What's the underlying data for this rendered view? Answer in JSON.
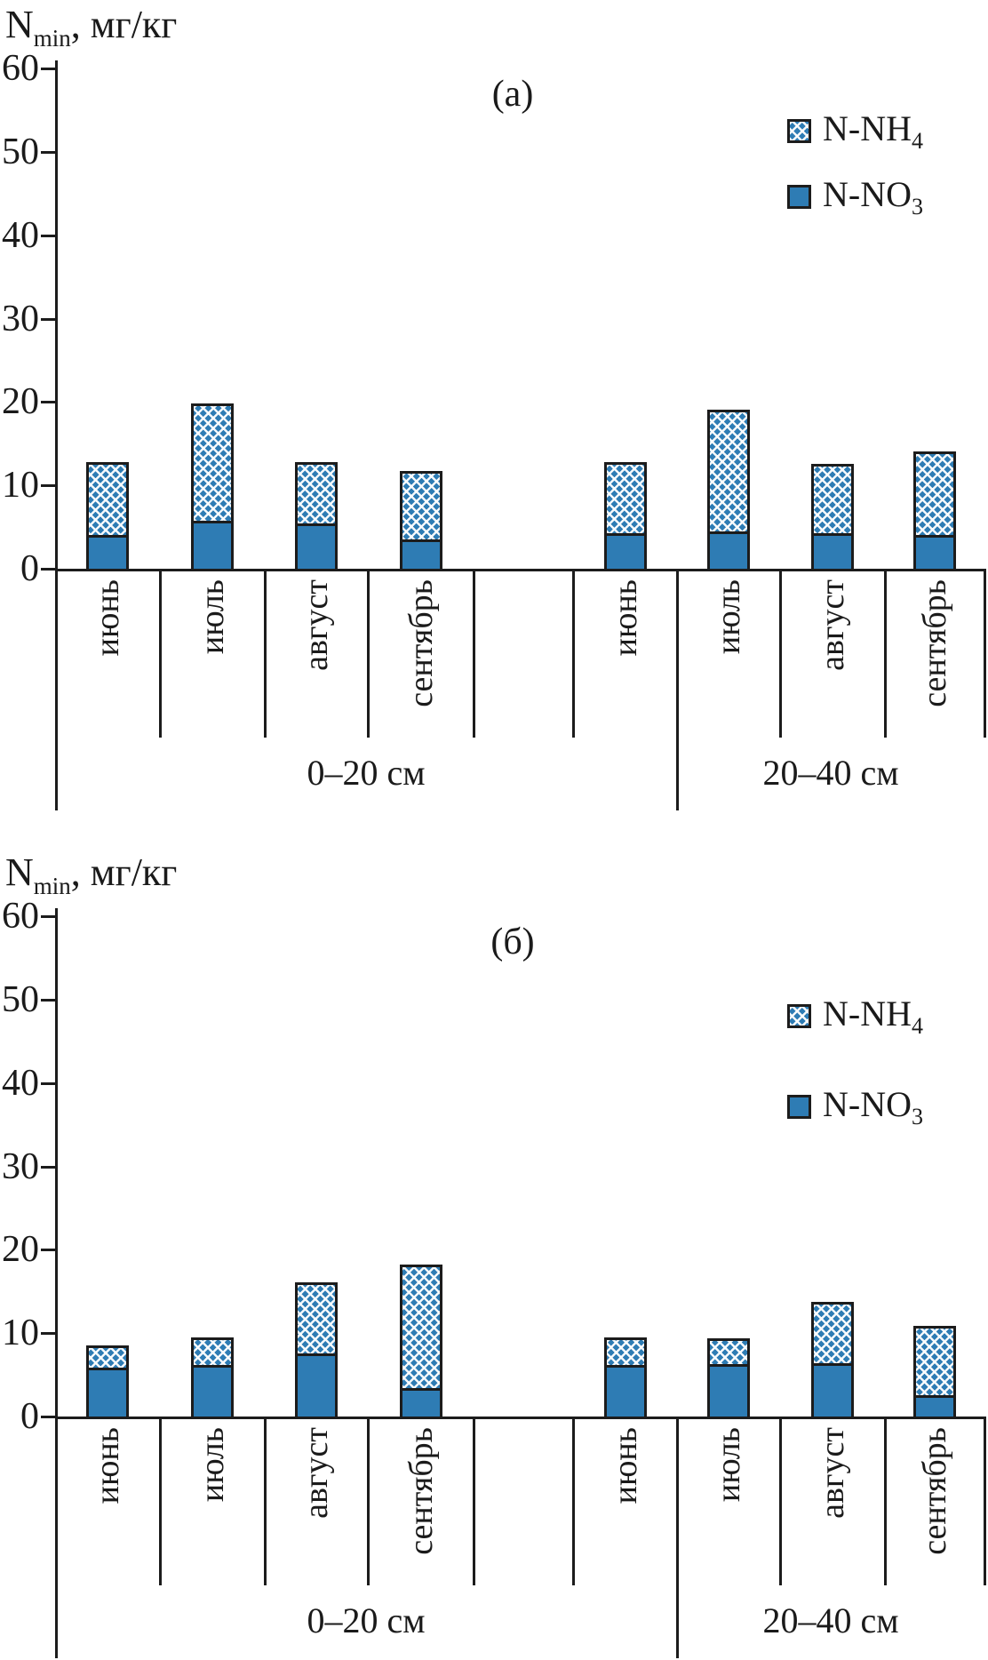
{
  "colors": {
    "bar_blue": "#2e7cb4",
    "outline": "#1c1c1c",
    "background": "#ffffff"
  },
  "y_axis_title": {
    "main": "N",
    "sub": "min",
    "rest": ", мг/кг"
  },
  "legend": [
    {
      "main": "N-NH",
      "sub": "4",
      "series": "nh4",
      "swatch": "crosshatch-blue"
    },
    {
      "main": "N-NO",
      "sub": "3",
      "series": "no3",
      "swatch": "solid-blue"
    }
  ],
  "chart_data": [
    {
      "panel_label": "(а)",
      "type": "bar",
      "stacked": true,
      "ylabel": "Nmin, мг/кг",
      "ylim": [
        0,
        60
      ],
      "yticks": [
        0,
        10,
        20,
        30,
        40,
        50,
        60
      ],
      "grid": false,
      "legend_entries": [
        "N-NH4",
        "N-NO3"
      ],
      "legend_position": "top-right",
      "groups": [
        {
          "label": "0–20 см",
          "categories": [
            "июнь",
            "июль",
            "август",
            "сентябрь"
          ],
          "series": [
            {
              "name": "N-NO3",
              "values": [
                4.3,
                6.0,
                5.6,
                3.7
              ]
            },
            {
              "name": "N-NH4",
              "values": [
                8.7,
                14.0,
                7.4,
                8.2
              ]
            }
          ],
          "totals": [
            13.0,
            20.0,
            13.0,
            11.9
          ]
        },
        {
          "label": "20–40 см",
          "categories": [
            "июнь",
            "июль",
            "август",
            "сентябрь"
          ],
          "series": [
            {
              "name": "N-NO3",
              "values": [
                4.5,
                4.7,
                4.5,
                4.3
              ]
            },
            {
              "name": "N-NH4",
              "values": [
                8.5,
                14.6,
                8.3,
                10.0
              ]
            }
          ],
          "totals": [
            13.0,
            19.3,
            12.8,
            14.3
          ]
        }
      ]
    },
    {
      "panel_label": "(б)",
      "type": "bar",
      "stacked": true,
      "ylabel": "Nmin, мг/кг",
      "ylim": [
        0,
        60
      ],
      "yticks": [
        0,
        10,
        20,
        30,
        40,
        50,
        60
      ],
      "grid": false,
      "legend_entries": [
        "N-NH4",
        "N-NO3"
      ],
      "legend_position": "top-right",
      "groups": [
        {
          "label": "0–20 см",
          "categories": [
            "июнь",
            "июль",
            "август",
            "сентябрь"
          ],
          "series": [
            {
              "name": "N-NO3",
              "values": [
                6.1,
                6.4,
                7.8,
                3.6
              ]
            },
            {
              "name": "N-NH4",
              "values": [
                2.6,
                3.3,
                8.5,
                14.8
              ]
            }
          ],
          "totals": [
            8.7,
            9.7,
            16.3,
            18.4
          ]
        },
        {
          "label": "20–40 см",
          "categories": [
            "июнь",
            "июль",
            "август",
            "сентябрь"
          ],
          "series": [
            {
              "name": "N-NO3",
              "values": [
                6.4,
                6.5,
                6.6,
                2.8
              ]
            },
            {
              "name": "N-NH4",
              "values": [
                3.3,
                3.1,
                7.4,
                8.3
              ]
            }
          ],
          "totals": [
            9.7,
            9.6,
            14.0,
            11.1
          ]
        }
      ]
    }
  ]
}
